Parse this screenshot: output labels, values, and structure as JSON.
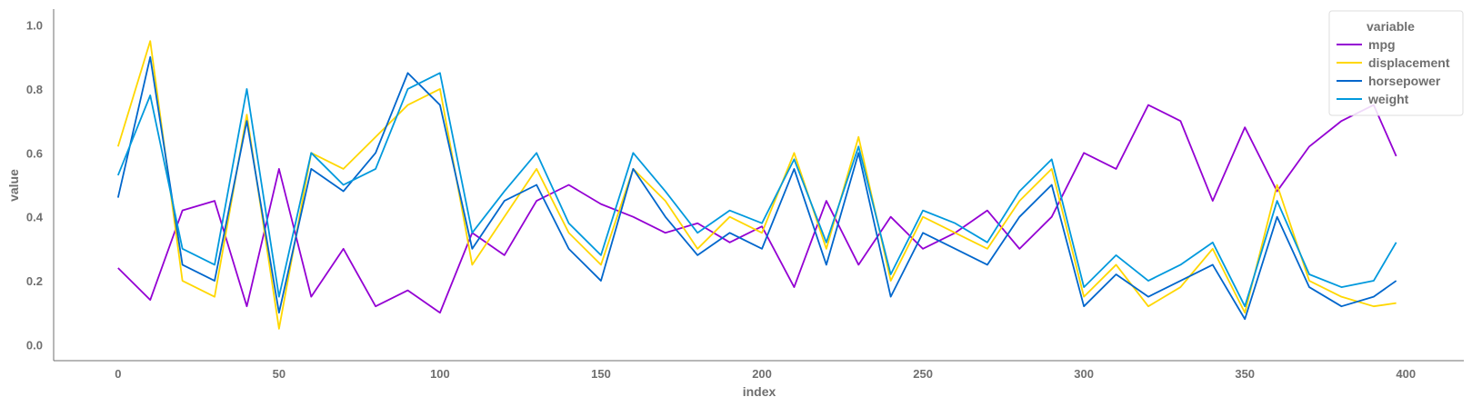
{
  "chart_data": {
    "type": "line",
    "xlabel": "index",
    "ylabel": "value",
    "xlim": [
      -20,
      418
    ],
    "ylim": [
      -0.05,
      1.05
    ],
    "xticks": [
      0,
      50,
      100,
      150,
      200,
      250,
      300,
      350,
      400
    ],
    "yticks": [
      0.0,
      0.2,
      0.4,
      0.6,
      0.8,
      1.0
    ],
    "xtick_labels": [
      "0",
      "50",
      "100",
      "150",
      "200",
      "250",
      "300",
      "350",
      "400"
    ],
    "ytick_labels": [
      "0.0",
      "0.2",
      "0.4",
      "0.6",
      "0.8",
      "1.0"
    ],
    "grid": false,
    "legend": {
      "title": "variable",
      "placement": "top-right"
    },
    "x": [
      0,
      10,
      20,
      30,
      40,
      50,
      60,
      70,
      80,
      90,
      100,
      110,
      120,
      130,
      140,
      150,
      160,
      170,
      180,
      190,
      200,
      210,
      220,
      230,
      240,
      250,
      260,
      270,
      280,
      290,
      300,
      310,
      320,
      330,
      340,
      350,
      360,
      370,
      380,
      390,
      397
    ],
    "series": [
      {
        "name": "mpg",
        "color": "#9400D3",
        "values": [
          0.24,
          0.14,
          0.42,
          0.45,
          0.12,
          0.55,
          0.15,
          0.3,
          0.12,
          0.17,
          0.1,
          0.35,
          0.28,
          0.45,
          0.5,
          0.44,
          0.4,
          0.35,
          0.38,
          0.32,
          0.37,
          0.18,
          0.45,
          0.25,
          0.4,
          0.3,
          0.35,
          0.42,
          0.3,
          0.4,
          0.6,
          0.55,
          0.75,
          0.7,
          0.45,
          0.68,
          0.48,
          0.62,
          0.7,
          0.75,
          0.59
        ]
      },
      {
        "name": "displacement",
        "color": "#FFD700",
        "values": [
          0.62,
          0.95,
          0.2,
          0.15,
          0.72,
          0.05,
          0.6,
          0.55,
          0.65,
          0.75,
          0.8,
          0.25,
          0.4,
          0.55,
          0.35,
          0.25,
          0.55,
          0.45,
          0.3,
          0.4,
          0.35,
          0.6,
          0.3,
          0.65,
          0.2,
          0.4,
          0.35,
          0.3,
          0.45,
          0.55,
          0.15,
          0.25,
          0.12,
          0.18,
          0.3,
          0.1,
          0.5,
          0.2,
          0.15,
          0.12,
          0.13
        ]
      },
      {
        "name": "horsepower",
        "color": "#0066CC",
        "values": [
          0.46,
          0.9,
          0.25,
          0.2,
          0.7,
          0.1,
          0.55,
          0.48,
          0.6,
          0.85,
          0.75,
          0.3,
          0.45,
          0.5,
          0.3,
          0.2,
          0.55,
          0.4,
          0.28,
          0.35,
          0.3,
          0.55,
          0.25,
          0.6,
          0.15,
          0.35,
          0.3,
          0.25,
          0.4,
          0.5,
          0.12,
          0.22,
          0.15,
          0.2,
          0.25,
          0.08,
          0.4,
          0.18,
          0.12,
          0.15,
          0.2
        ]
      },
      {
        "name": "weight",
        "color": "#0099DD",
        "values": [
          0.53,
          0.78,
          0.3,
          0.25,
          0.8,
          0.15,
          0.6,
          0.5,
          0.55,
          0.8,
          0.85,
          0.35,
          0.48,
          0.6,
          0.38,
          0.28,
          0.6,
          0.48,
          0.35,
          0.42,
          0.38,
          0.58,
          0.32,
          0.62,
          0.22,
          0.42,
          0.38,
          0.32,
          0.48,
          0.58,
          0.18,
          0.28,
          0.2,
          0.25,
          0.32,
          0.12,
          0.45,
          0.22,
          0.18,
          0.2,
          0.32
        ]
      }
    ]
  }
}
